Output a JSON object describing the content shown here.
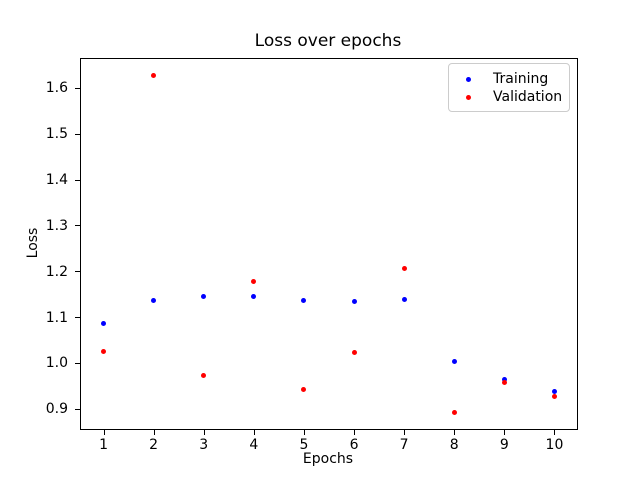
{
  "chart_data": {
    "type": "scatter",
    "title": "Loss over epochs",
    "xlabel": "Epochs",
    "ylabel": "Loss",
    "x": [
      1,
      2,
      3,
      4,
      5,
      6,
      7,
      8,
      9,
      10
    ],
    "series": [
      {
        "name": "Training",
        "color": "#0000ff",
        "values": [
          1.087,
          1.137,
          1.146,
          1.145,
          1.137,
          1.135,
          1.139,
          1.004,
          0.966,
          0.938
        ]
      },
      {
        "name": "Validation",
        "color": "#ff0000",
        "values": [
          1.026,
          1.627,
          0.974,
          1.179,
          0.944,
          1.023,
          1.206,
          0.893,
          0.958,
          0.927
        ]
      }
    ],
    "xticks": [
      1,
      2,
      3,
      4,
      5,
      6,
      7,
      8,
      9,
      10
    ],
    "yticks": [
      0.9,
      1.0,
      1.1,
      1.2,
      1.3,
      1.4,
      1.5,
      1.6
    ],
    "xlim": [
      0.55,
      10.45
    ],
    "ylim": [
      0.857,
      1.664
    ],
    "grid": false,
    "legend_position": "upper right",
    "marker": "point",
    "background_color": "#ffffff",
    "axis_color": "#000000",
    "legend_border_color": "#cccccc"
  }
}
